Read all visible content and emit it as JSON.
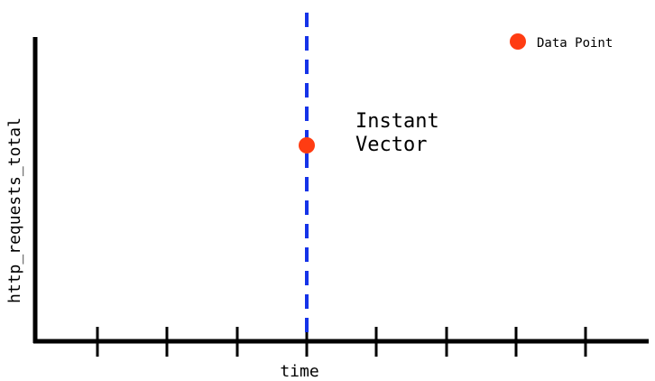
{
  "axes": {
    "x_label": "time",
    "y_label": "http_requests_total",
    "tick_count": 8
  },
  "annotation": {
    "line1": "Instant",
    "line2": "Vector"
  },
  "legend": {
    "label": "Data Point"
  },
  "colors": {
    "axis": "#000000",
    "instant_line": "#1533e8",
    "data_point": "#ff3c12"
  }
}
